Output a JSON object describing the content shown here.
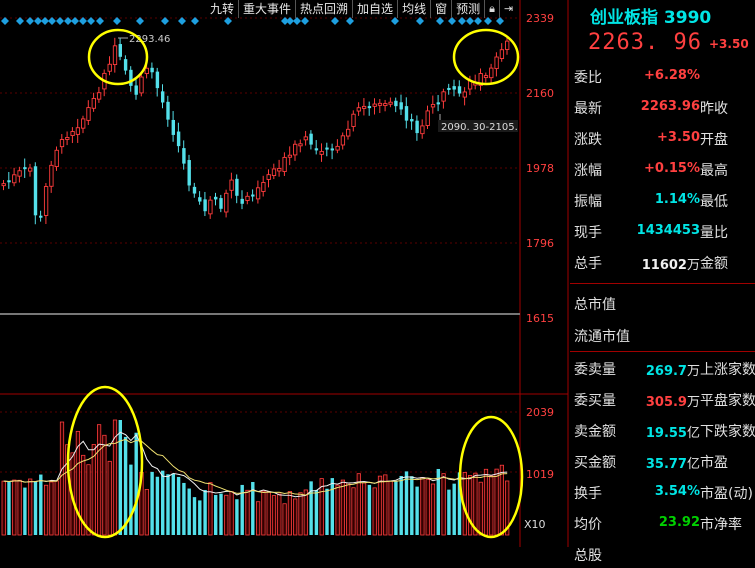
{
  "toolbar": {
    "buttons": [
      "九转",
      "重大事件",
      "热点回溯",
      "加自选",
      "均线",
      "窗",
      "预测"
    ],
    "icons": [
      "lock-icon",
      "exit-icon"
    ]
  },
  "chart": {
    "price_ticks": [
      "2339",
      "2160",
      "1978",
      "1796",
      "1615"
    ],
    "volume_ticks": [
      "2039",
      "1019",
      "X10"
    ],
    "high_label": "2293.46",
    "range_label": "2090. 30-2105."
  },
  "quote": {
    "title": "创业板指 3990",
    "price": "2263. 96",
    "change": "+3.50",
    "rows": [
      {
        "label": "委比",
        "value": "+6.28%",
        "color": "red",
        "label2": ""
      },
      {
        "label": "最新",
        "value": "2263.96",
        "color": "red",
        "label2": "昨收"
      },
      {
        "label": "涨跌",
        "value": "+3.50",
        "color": "red",
        "label2": "开盘"
      },
      {
        "label": "涨幅",
        "value": "+0.15%",
        "color": "red",
        "label2": "最高"
      },
      {
        "label": "振幅",
        "value": "1.14%",
        "color": "cyan",
        "label2": "最低"
      },
      {
        "label": "现手",
        "value": "1434453",
        "color": "cyan",
        "label2": "量比"
      },
      {
        "label": "总手",
        "value": "11602",
        "unit": "万",
        "color": "white",
        "label2": "金额"
      },
      {
        "label": "总市值",
        "value": "",
        "color": "white",
        "label2": ""
      },
      {
        "label": "流通市值",
        "value": "",
        "color": "white",
        "label2": ""
      },
      {
        "label": "委卖量",
        "value": "269.7",
        "unit": "万",
        "color": "cyan",
        "label2": "上涨家数"
      },
      {
        "label": "委买量",
        "value": "305.9",
        "unit": "万",
        "color": "red",
        "label2": "平盘家数"
      },
      {
        "label": "卖金额",
        "value": "19.55",
        "unit": "亿",
        "color": "cyan",
        "label2": "下跌家数"
      },
      {
        "label": "买金额",
        "value": "35.77",
        "unit": "亿",
        "color": "cyan",
        "label2": "市盈"
      },
      {
        "label": "换手",
        "value": "3.54%",
        "color": "cyan",
        "label2": "市盈(动)"
      },
      {
        "label": "均价",
        "value": "23.92",
        "color": "green",
        "label2": "市净率"
      },
      {
        "label": "总股",
        "value": "",
        "color": "white",
        "label2": ""
      }
    ]
  },
  "colors": {
    "up": "#ff3c3c",
    "down": "#54e0ea",
    "axis": "#a00000",
    "ma": "#f0f0f0",
    "ma2": "#f0e070",
    "highlight": "#ffff00"
  }
}
